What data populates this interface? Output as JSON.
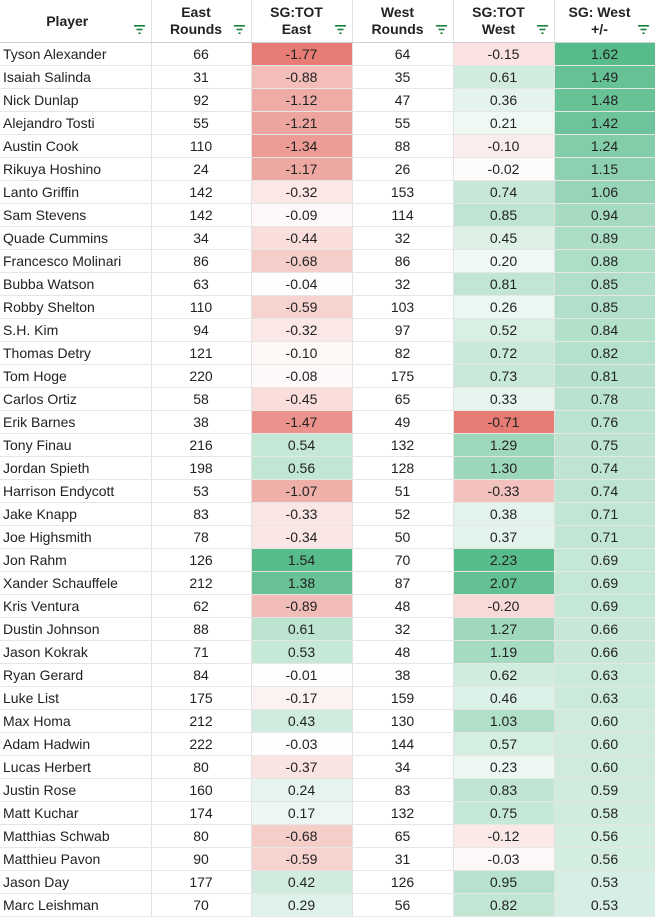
{
  "headers": [
    {
      "label": "Player"
    },
    {
      "label": "East\nRounds"
    },
    {
      "label": "SG:TOT\nEast"
    },
    {
      "label": "West\nRounds"
    },
    {
      "label": "SG:TOT\nWest"
    },
    {
      "label": "SG: West\n+/-"
    }
  ],
  "icons": {
    "filter": "filter-icon"
  },
  "colors": {
    "negative": "#e67c73",
    "neutral": "#ffffff",
    "positive": "#57bb8a"
  },
  "rows": [
    {
      "player": "Tyson Alexander",
      "east_rounds": "66",
      "sg_east": "-1.77",
      "west_rounds": "64",
      "sg_west": "-0.15",
      "diff": "1.62"
    },
    {
      "player": "Isaiah Salinda",
      "east_rounds": "31",
      "sg_east": "-0.88",
      "west_rounds": "35",
      "sg_west": "0.61",
      "diff": "1.49"
    },
    {
      "player": "Nick Dunlap",
      "east_rounds": "92",
      "sg_east": "-1.12",
      "west_rounds": "47",
      "sg_west": "0.36",
      "diff": "1.48"
    },
    {
      "player": "Alejandro Tosti",
      "east_rounds": "55",
      "sg_east": "-1.21",
      "west_rounds": "55",
      "sg_west": "0.21",
      "diff": "1.42"
    },
    {
      "player": "Austin Cook",
      "east_rounds": "110",
      "sg_east": "-1.34",
      "west_rounds": "88",
      "sg_west": "-0.10",
      "diff": "1.24"
    },
    {
      "player": "Rikuya Hoshino",
      "east_rounds": "24",
      "sg_east": "-1.17",
      "west_rounds": "26",
      "sg_west": "-0.02",
      "diff": "1.15"
    },
    {
      "player": "Lanto Griffin",
      "east_rounds": "142",
      "sg_east": "-0.32",
      "west_rounds": "153",
      "sg_west": "0.74",
      "diff": "1.06"
    },
    {
      "player": "Sam Stevens",
      "east_rounds": "142",
      "sg_east": "-0.09",
      "west_rounds": "114",
      "sg_west": "0.85",
      "diff": "0.94"
    },
    {
      "player": "Quade Cummins",
      "east_rounds": "34",
      "sg_east": "-0.44",
      "west_rounds": "32",
      "sg_west": "0.45",
      "diff": "0.89"
    },
    {
      "player": "Francesco Molinari",
      "east_rounds": "86",
      "sg_east": "-0.68",
      "west_rounds": "86",
      "sg_west": "0.20",
      "diff": "0.88"
    },
    {
      "player": "Bubba Watson",
      "east_rounds": "63",
      "sg_east": "-0.04",
      "west_rounds": "32",
      "sg_west": "0.81",
      "diff": "0.85"
    },
    {
      "player": "Robby Shelton",
      "east_rounds": "110",
      "sg_east": "-0.59",
      "west_rounds": "103",
      "sg_west": "0.26",
      "diff": "0.85"
    },
    {
      "player": "S.H. Kim",
      "east_rounds": "94",
      "sg_east": "-0.32",
      "west_rounds": "97",
      "sg_west": "0.52",
      "diff": "0.84"
    },
    {
      "player": "Thomas Detry",
      "east_rounds": "121",
      "sg_east": "-0.10",
      "west_rounds": "82",
      "sg_west": "0.72",
      "diff": "0.82"
    },
    {
      "player": "Tom Hoge",
      "east_rounds": "220",
      "sg_east": "-0.08",
      "west_rounds": "175",
      "sg_west": "0.73",
      "diff": "0.81"
    },
    {
      "player": "Carlos Ortiz",
      "east_rounds": "58",
      "sg_east": "-0.45",
      "west_rounds": "65",
      "sg_west": "0.33",
      "diff": "0.78"
    },
    {
      "player": "Erik Barnes",
      "east_rounds": "38",
      "sg_east": "-1.47",
      "west_rounds": "49",
      "sg_west": "-0.71",
      "diff": "0.76"
    },
    {
      "player": "Tony Finau",
      "east_rounds": "216",
      "sg_east": "0.54",
      "west_rounds": "132",
      "sg_west": "1.29",
      "diff": "0.75"
    },
    {
      "player": "Jordan Spieth",
      "east_rounds": "198",
      "sg_east": "0.56",
      "west_rounds": "128",
      "sg_west": "1.30",
      "diff": "0.74"
    },
    {
      "player": "Harrison Endycott",
      "east_rounds": "53",
      "sg_east": "-1.07",
      "west_rounds": "51",
      "sg_west": "-0.33",
      "diff": "0.74"
    },
    {
      "player": "Jake Knapp",
      "east_rounds": "83",
      "sg_east": "-0.33",
      "west_rounds": "52",
      "sg_west": "0.38",
      "diff": "0.71"
    },
    {
      "player": "Joe Highsmith",
      "east_rounds": "78",
      "sg_east": "-0.34",
      "west_rounds": "50",
      "sg_west": "0.37",
      "diff": "0.71"
    },
    {
      "player": "Jon Rahm",
      "east_rounds": "126",
      "sg_east": "1.54",
      "west_rounds": "70",
      "sg_west": "2.23",
      "diff": "0.69"
    },
    {
      "player": "Xander Schauffele",
      "east_rounds": "212",
      "sg_east": "1.38",
      "west_rounds": "87",
      "sg_west": "2.07",
      "diff": "0.69"
    },
    {
      "player": "Kris Ventura",
      "east_rounds": "62",
      "sg_east": "-0.89",
      "west_rounds": "48",
      "sg_west": "-0.20",
      "diff": "0.69"
    },
    {
      "player": "Dustin Johnson",
      "east_rounds": "88",
      "sg_east": "0.61",
      "west_rounds": "32",
      "sg_west": "1.27",
      "diff": "0.66"
    },
    {
      "player": "Jason Kokrak",
      "east_rounds": "71",
      "sg_east": "0.53",
      "west_rounds": "48",
      "sg_west": "1.19",
      "diff": "0.66"
    },
    {
      "player": "Ryan Gerard",
      "east_rounds": "84",
      "sg_east": "-0.01",
      "west_rounds": "38",
      "sg_west": "0.62",
      "diff": "0.63"
    },
    {
      "player": "Luke List",
      "east_rounds": "175",
      "sg_east": "-0.17",
      "west_rounds": "159",
      "sg_west": "0.46",
      "diff": "0.63"
    },
    {
      "player": "Max Homa",
      "east_rounds": "212",
      "sg_east": "0.43",
      "west_rounds": "130",
      "sg_west": "1.03",
      "diff": "0.60"
    },
    {
      "player": "Adam Hadwin",
      "east_rounds": "222",
      "sg_east": "-0.03",
      "west_rounds": "144",
      "sg_west": "0.57",
      "diff": "0.60"
    },
    {
      "player": "Lucas Herbert",
      "east_rounds": "80",
      "sg_east": "-0.37",
      "west_rounds": "34",
      "sg_west": "0.23",
      "diff": "0.60"
    },
    {
      "player": "Justin Rose",
      "east_rounds": "160",
      "sg_east": "0.24",
      "west_rounds": "83",
      "sg_west": "0.83",
      "diff": "0.59"
    },
    {
      "player": "Matt Kuchar",
      "east_rounds": "174",
      "sg_east": "0.17",
      "west_rounds": "132",
      "sg_west": "0.75",
      "diff": "0.58"
    },
    {
      "player": "Matthias Schwab",
      "east_rounds": "80",
      "sg_east": "-0.68",
      "west_rounds": "65",
      "sg_west": "-0.12",
      "diff": "0.56"
    },
    {
      "player": "Matthieu Pavon",
      "east_rounds": "90",
      "sg_east": "-0.59",
      "west_rounds": "31",
      "sg_west": "-0.03",
      "diff": "0.56"
    },
    {
      "player": "Jason Day",
      "east_rounds": "177",
      "sg_east": "0.42",
      "west_rounds": "126",
      "sg_west": "0.95",
      "diff": "0.53"
    },
    {
      "player": "Marc Leishman",
      "east_rounds": "70",
      "sg_east": "0.29",
      "west_rounds": "56",
      "sg_west": "0.82",
      "diff": "0.53"
    }
  ]
}
